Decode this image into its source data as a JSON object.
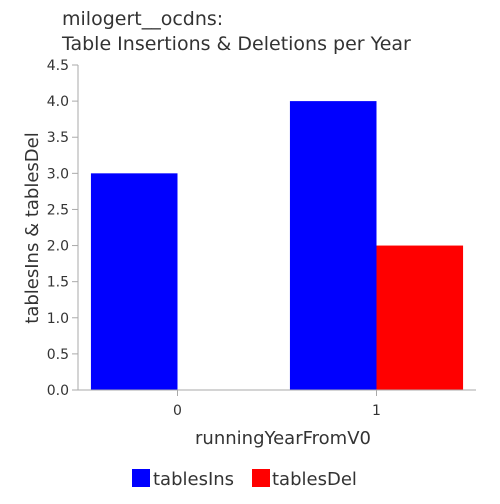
{
  "chart_data": {
    "type": "bar",
    "title_lines": [
      "milogert__ocdns:",
      "Table Insertions & Deletions per Year"
    ],
    "xlabel": "runningYearFromV0",
    "ylabel": "tablesIns & tablesDel",
    "categories": [
      "0",
      "1"
    ],
    "series": [
      {
        "name": "tablesIns",
        "color": "#0000ff",
        "values": [
          3,
          4
        ]
      },
      {
        "name": "tablesDel",
        "color": "#ff0000",
        "values": [
          0,
          2
        ]
      }
    ],
    "ylim": [
      0,
      4.5
    ],
    "yticks": [
      "0.0",
      "0.5",
      "1.0",
      "1.5",
      "2.0",
      "2.5",
      "3.0",
      "3.5",
      "4.0",
      "4.5"
    ],
    "grid": false,
    "legend_position": "bottom"
  }
}
